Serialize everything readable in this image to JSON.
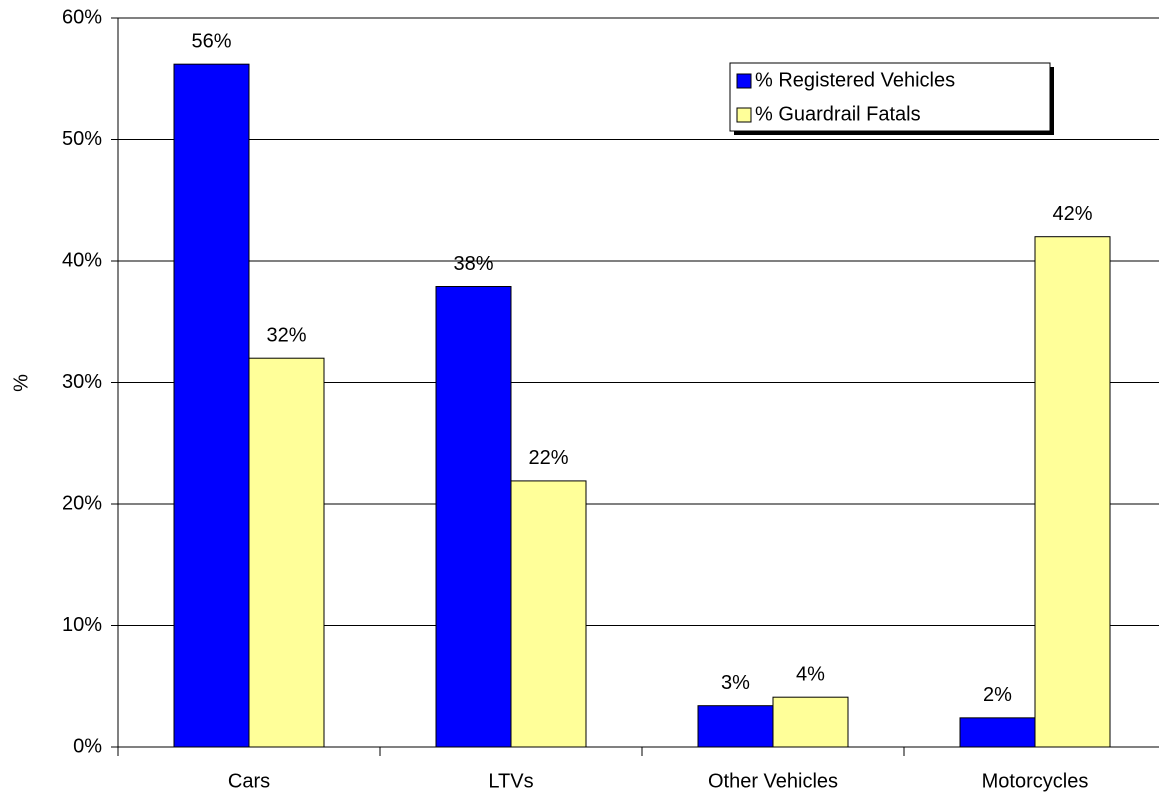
{
  "chart_data": {
    "type": "bar",
    "y_label": "%",
    "categories": [
      "Cars",
      "LTVs",
      "Other Vehicles",
      "Motorcycles"
    ],
    "series": [
      {
        "name": "% Registered Vehicles",
        "color": "#0000ff",
        "values": [
          56.2,
          37.9,
          3.4,
          2.4
        ],
        "value_labels": [
          "56%",
          "38%",
          "3%",
          "2%"
        ]
      },
      {
        "name": "% Guardrail Fatals",
        "color": "#ffff99",
        "values": [
          32.0,
          21.9,
          4.1,
          42.0
        ],
        "value_labels": [
          "32%",
          "22%",
          "4%",
          "42%"
        ]
      }
    ],
    "ylim": [
      0,
      60
    ],
    "yticks": [
      {
        "value": 0,
        "label": "0%"
      },
      {
        "value": 10,
        "label": "10%"
      },
      {
        "value": 20,
        "label": "20%"
      },
      {
        "value": 30,
        "label": "30%"
      },
      {
        "value": 40,
        "label": "40%"
      },
      {
        "value": 50,
        "label": "50%"
      },
      {
        "value": 60,
        "label": "60%"
      }
    ],
    "grid": true,
    "legend": "upper right"
  }
}
